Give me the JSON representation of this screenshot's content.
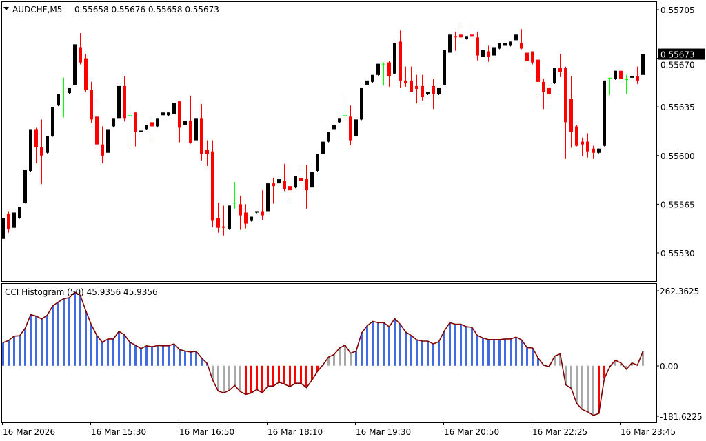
{
  "header": {
    "symbol": "AUDCHF,M5",
    "ohlc_text": "0.55658 0.55676 0.55658 0.55673"
  },
  "indicator": {
    "title": "CCI Histogram (50) 45.9356 45.9356",
    "max_label": "262.3625",
    "zero_label": "0.00",
    "min_label": "-181.6225"
  },
  "colors": {
    "bull": "#000000",
    "bear": "#ff0000",
    "doji": "#00ff00",
    "hist_up": "#4169e1",
    "hist_down": "#ff0000",
    "hist_neutral": "#a9a9a9",
    "cci_line": "#800000"
  },
  "price_axis": {
    "labels": [
      "0.55705",
      "0.55670",
      "0.55635",
      "0.55600",
      "0.55565",
      "0.55530"
    ],
    "current_price": "0.55673",
    "range": [
      0.5553,
      0.55705
    ]
  },
  "time_axis": [
    {
      "label": "16 Mar 2026",
      "bar": 0
    },
    {
      "label": "16 Mar 15:30",
      "bar": 16
    },
    {
      "label": "16 Mar 16:50",
      "bar": 32
    },
    {
      "label": "16 Mar 18:10",
      "bar": 48
    },
    {
      "label": "16 Mar 19:30",
      "bar": 64
    },
    {
      "label": "16 Mar 20:50",
      "bar": 80
    },
    {
      "label": "16 Mar 22:25",
      "bar": 96
    },
    {
      "label": "16 Mar 23:45",
      "bar": 112
    }
  ],
  "chart_data": [
    {
      "type": "candlestick",
      "title": "AUDCHF,M5",
      "ylim": [
        0.5553,
        0.55705
      ],
      "fields": [
        "open",
        "high",
        "low",
        "close"
      ],
      "candles": [
        [
          0.5554,
          0.55555,
          0.5554,
          0.55555
        ],
        [
          0.55558,
          0.5556,
          0.55545,
          0.55547
        ],
        [
          0.55548,
          0.55559,
          0.55548,
          0.55559
        ],
        [
          0.55555,
          0.55563,
          0.55555,
          0.55563
        ],
        [
          0.55566,
          0.5559,
          0.55566,
          0.5559
        ],
        [
          0.55589,
          0.55619,
          0.55589,
          0.55619
        ],
        [
          0.55619,
          0.5562,
          0.55595,
          0.55606
        ],
        [
          0.55606,
          0.55626,
          0.5558,
          0.556
        ],
        [
          0.55602,
          0.55614,
          0.55602,
          0.55614
        ],
        [
          0.55614,
          0.55635,
          0.55614,
          0.55635
        ],
        [
          0.55636,
          0.55644,
          0.55636,
          0.55644
        ],
        [
          0.55646,
          0.55656,
          0.55628,
          0.55646
        ],
        [
          0.55645,
          0.55649,
          0.55645,
          0.55649
        ],
        [
          0.55651,
          0.5568,
          0.55651,
          0.5568
        ],
        [
          0.55678,
          0.55688,
          0.55666,
          0.55667
        ],
        [
          0.5567,
          0.55673,
          0.55646,
          0.55647
        ],
        [
          0.55647,
          0.55653,
          0.55624,
          0.55626
        ],
        [
          0.55628,
          0.5564,
          0.55607,
          0.55608
        ],
        [
          0.55608,
          0.55621,
          0.55595,
          0.556
        ],
        [
          0.55602,
          0.55619,
          0.55602,
          0.55619
        ],
        [
          0.55621,
          0.55627,
          0.55621,
          0.55627
        ],
        [
          0.55627,
          0.5565,
          0.55627,
          0.5565
        ],
        [
          0.5565,
          0.55657,
          0.55625,
          0.55627
        ],
        [
          0.55629,
          0.55633,
          0.55607,
          0.55629
        ],
        [
          0.55631,
          0.55631,
          0.55607,
          0.55617
        ],
        [
          0.55617,
          0.55618,
          0.55617,
          0.55618
        ],
        [
          0.55619,
          0.55622,
          0.55619,
          0.55622
        ],
        [
          0.55624,
          0.55628,
          0.55612,
          0.55621
        ],
        [
          0.55621,
          0.55627,
          0.55621,
          0.55627
        ],
        [
          0.55629,
          0.55631,
          0.55629,
          0.55631
        ],
        [
          0.55629,
          0.55631,
          0.55629,
          0.55631
        ],
        [
          0.5563,
          0.55638,
          0.5563,
          0.55638
        ],
        [
          0.55639,
          0.55639,
          0.5561,
          0.5562
        ],
        [
          0.55622,
          0.55625,
          0.55622,
          0.55625
        ],
        [
          0.55625,
          0.55643,
          0.55609,
          0.55609
        ],
        [
          0.55611,
          0.55627,
          0.55611,
          0.55627
        ],
        [
          0.55627,
          0.55637,
          0.55597,
          0.55601
        ],
        [
          0.55604,
          0.55611,
          0.55593,
          0.55601
        ],
        [
          0.55603,
          0.55611,
          0.55549,
          0.55553
        ],
        [
          0.55555,
          0.55566,
          0.55545,
          0.55548
        ],
        [
          0.55549,
          0.55564,
          0.55543,
          0.55548
        ],
        [
          0.55547,
          0.55564,
          0.55547,
          0.55564
        ],
        [
          0.55566,
          0.55581,
          0.55562,
          0.55566
        ],
        [
          0.55565,
          0.55571,
          0.55547,
          0.55557
        ],
        [
          0.55559,
          0.55565,
          0.55548,
          0.55551
        ],
        [
          0.55553,
          0.55556,
          0.55553,
          0.55556
        ],
        [
          0.55559,
          0.5556,
          0.55559,
          0.5556
        ],
        [
          0.5556,
          0.55575,
          0.55554,
          0.55557
        ],
        [
          0.5556,
          0.5558,
          0.5556,
          0.5558
        ],
        [
          0.5558,
          0.55584,
          0.55566,
          0.55578
        ],
        [
          0.5558,
          0.55583,
          0.5558,
          0.55583
        ],
        [
          0.55582,
          0.55594,
          0.55575,
          0.55576
        ],
        [
          0.55578,
          0.55593,
          0.55569,
          0.55575
        ],
        [
          0.55577,
          0.55585,
          0.55577,
          0.55585
        ],
        [
          0.55584,
          0.55591,
          0.5558,
          0.55582
        ],
        [
          0.55583,
          0.55593,
          0.55562,
          0.55575
        ],
        [
          0.55577,
          0.55588,
          0.55577,
          0.55588
        ],
        [
          0.55589,
          0.55601,
          0.55589,
          0.55601
        ],
        [
          0.55601,
          0.5561,
          0.55601,
          0.5561
        ],
        [
          0.5561,
          0.55617,
          0.5561,
          0.55617
        ],
        [
          0.55619,
          0.55622,
          0.55619,
          0.55622
        ],
        [
          0.55624,
          0.55627,
          0.55624,
          0.55627
        ],
        [
          0.55629,
          0.55641,
          0.55627,
          0.55629
        ],
        [
          0.55628,
          0.55636,
          0.55608,
          0.55611
        ],
        [
          0.55614,
          0.55626,
          0.55614,
          0.55626
        ],
        [
          0.55626,
          0.55649,
          0.55626,
          0.55649
        ],
        [
          0.55651,
          0.55654,
          0.55651,
          0.55654
        ],
        [
          0.55653,
          0.55658,
          0.55653,
          0.55658
        ],
        [
          0.55658,
          0.55666,
          0.55658,
          0.55666
        ],
        [
          0.55666,
          0.55667,
          0.55651,
          0.55666
        ],
        [
          0.55667,
          0.55668,
          0.5565,
          0.55657
        ],
        [
          0.55659,
          0.55681,
          0.55659,
          0.55681
        ],
        [
          0.55682,
          0.5569,
          0.55649,
          0.55654
        ],
        [
          0.55654,
          0.55664,
          0.5565,
          0.55652
        ],
        [
          0.55654,
          0.55664,
          0.55646,
          0.55646
        ],
        [
          0.5565,
          0.55658,
          0.55638,
          0.55648
        ],
        [
          0.5565,
          0.55658,
          0.5564,
          0.55642
        ],
        [
          0.55644,
          0.55646,
          0.55644,
          0.55646
        ],
        [
          0.5565,
          0.55655,
          0.55634,
          0.55644
        ],
        [
          0.55644,
          0.55649,
          0.55644,
          0.55649
        ],
        [
          0.55651,
          0.55676,
          0.55651,
          0.55676
        ],
        [
          0.55674,
          0.55687,
          0.55674,
          0.55687
        ],
        [
          0.55686,
          0.55689,
          0.55676,
          0.55685
        ],
        [
          0.55687,
          0.55694,
          0.55681,
          0.55685
        ],
        [
          0.55684,
          0.55686,
          0.55684,
          0.55686
        ],
        [
          0.55687,
          0.55696,
          0.55686,
          0.55686
        ],
        [
          0.55685,
          0.55689,
          0.55669,
          0.55672
        ],
        [
          0.55671,
          0.55676,
          0.55671,
          0.55676
        ],
        [
          0.55675,
          0.55679,
          0.55668,
          0.55671
        ],
        [
          0.55672,
          0.55678,
          0.55672,
          0.55678
        ],
        [
          0.55677,
          0.55681,
          0.55677,
          0.55681
        ],
        [
          0.55679,
          0.55681,
          0.55679,
          0.55681
        ],
        [
          0.55679,
          0.55682,
          0.55679,
          0.55682
        ],
        [
          0.55683,
          0.55687,
          0.55683,
          0.55687
        ],
        [
          0.55681,
          0.55691,
          0.55677,
          0.55677
        ],
        [
          0.55674,
          0.55674,
          0.55662,
          0.55668
        ],
        [
          0.55675,
          0.55675,
          0.55666,
          0.55667
        ],
        [
          0.55669,
          0.55669,
          0.55644,
          0.55653
        ],
        [
          0.55653,
          0.55655,
          0.55634,
          0.55646
        ],
        [
          0.55649,
          0.55652,
          0.55635,
          0.55644
        ],
        [
          0.55652,
          0.55663,
          0.55652,
          0.55663
        ],
        [
          0.55663,
          0.55673,
          0.55657,
          0.5566
        ],
        [
          0.55663,
          0.55664,
          0.55598,
          0.55624
        ],
        [
          0.55641,
          0.55657,
          0.55606,
          0.55617
        ],
        [
          0.55621,
          0.55622,
          0.55607,
          0.55607
        ],
        [
          0.5561,
          0.55613,
          0.556,
          0.55608
        ],
        [
          0.5561,
          0.55616,
          0.55599,
          0.55603
        ],
        [
          0.55605,
          0.55607,
          0.55598,
          0.55602
        ],
        [
          0.55602,
          0.55605,
          0.55602,
          0.55605
        ],
        [
          0.55607,
          0.55654,
          0.55607,
          0.55654
        ],
        [
          0.55656,
          0.55656,
          0.55644,
          0.55656
        ],
        [
          0.55655,
          0.55661,
          0.55655,
          0.55661
        ],
        [
          0.55661,
          0.55664,
          0.55654,
          0.55655
        ],
        [
          0.55655,
          0.55658,
          0.55645,
          0.55655
        ],
        [
          0.55656,
          0.55657,
          0.55656,
          0.55657
        ],
        [
          0.55657,
          0.55664,
          0.55652,
          0.55654
        ],
        [
          0.55658,
          0.55676,
          0.55658,
          0.55673
        ]
      ]
    },
    {
      "type": "bar",
      "title": "CCI Histogram (50)",
      "ylim": [
        -181.6225,
        262.3625
      ],
      "values": [
        74,
        81,
        95,
        96,
        120,
        164,
        159,
        150,
        162,
        192,
        204,
        215,
        218,
        236,
        226,
        176,
        131,
        97,
        75,
        86,
        86,
        110,
        99,
        75,
        66,
        55,
        64,
        61,
        65,
        64,
        64,
        70,
        52,
        47,
        44,
        46,
        25,
        7,
        -46,
        -81,
        -87,
        -79,
        -63,
        -83,
        -92,
        -87,
        -76,
        -87,
        -65,
        -65,
        -53,
        -59,
        -67,
        -56,
        -56,
        -70,
        -46,
        -18,
        3,
        28,
        36,
        57,
        66,
        40,
        47,
        105,
        128,
        142,
        138,
        138,
        125,
        151,
        133,
        108,
        97,
        83,
        79,
        79,
        70,
        77,
        112,
        138,
        133,
        133,
        125,
        123,
        97,
        89,
        84,
        84,
        84,
        86,
        86,
        92,
        83,
        58,
        57,
        25,
        2,
        -3,
        31,
        38,
        -61,
        -72,
        -121,
        -140,
        -148,
        -159,
        -153,
        -41,
        -3,
        18,
        9,
        -11,
        9,
        2,
        45.9356
      ],
      "bar_states": "bbbbbbbbbbbbbbbbbbbbbbbbbbbbbbbbbbbbbbggggggrrrrrrrrrrrrrrggggggbbbbbbbbbbbbbbbbbbbbbbbbbbbbbbbbbbbgggggggggrrrgggggg"
    }
  ]
}
